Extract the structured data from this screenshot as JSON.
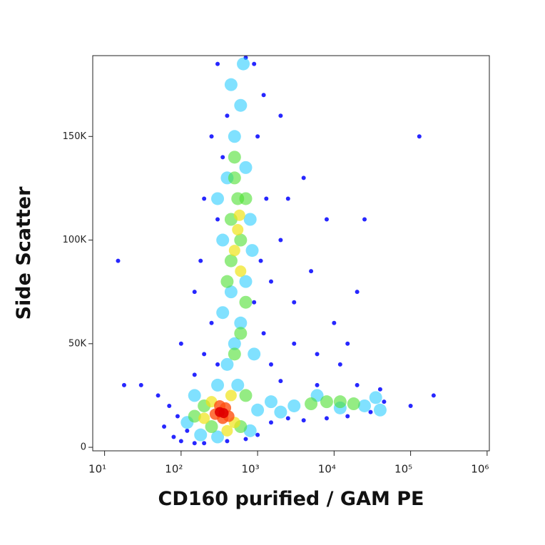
{
  "chart_data": {
    "type": "scatter",
    "x_label": "CD160 purified / GAM PE",
    "y_label": "Side Scatter",
    "xscale": "log",
    "xlim": [
      7,
      1070000
    ],
    "ylim": [
      -1700,
      189000
    ],
    "xticks": [
      {
        "value": 10,
        "label": "10¹"
      },
      {
        "value": 100,
        "label": "10²"
      },
      {
        "value": 1000,
        "label": "10³"
      },
      {
        "value": 10000,
        "label": "10⁴"
      },
      {
        "value": 100000,
        "label": "10⁵"
      },
      {
        "value": 1000000,
        "label": "10⁶"
      }
    ],
    "yticks": [
      0,
      {
        "value": 50000,
        "label": "50K"
      },
      {
        "value": 100000,
        "label": "100K"
      },
      {
        "value": 150000,
        "label": "150K"
      }
    ],
    "series": [
      {
        "color": "#1010ff",
        "x": [
          60,
          80,
          100,
          120,
          150,
          90,
          70,
          200,
          400,
          700,
          1000,
          1500,
          2500,
          4000,
          8000,
          15000,
          30000,
          45000,
          40000,
          20000,
          6000,
          2000,
          1500,
          1200,
          900,
          1500,
          2000,
          1300,
          1000,
          1200,
          900,
          300,
          250,
          200,
          180,
          150,
          250,
          200,
          150,
          100,
          3000,
          5000,
          8000,
          4000,
          20000,
          15000,
          25000,
          700,
          400,
          50,
          30,
          15,
          18,
          300,
          1100,
          2000,
          6000,
          10000,
          12000,
          3000,
          300,
          350,
          2500,
          100000,
          200000,
          130000
        ],
        "y": [
          10000,
          5000,
          3000,
          8000,
          2000,
          15000,
          20000,
          2000,
          3000,
          4000,
          6000,
          12000,
          14000,
          13000,
          14000,
          15000,
          17000,
          22000,
          28000,
          30000,
          30000,
          32000,
          40000,
          55000,
          70000,
          80000,
          100000,
          120000,
          150000,
          170000,
          185000,
          185000,
          150000,
          120000,
          90000,
          75000,
          60000,
          45000,
          35000,
          50000,
          70000,
          85000,
          110000,
          130000,
          75000,
          50000,
          110000,
          188000,
          160000,
          25000,
          30000,
          90000,
          30000,
          40000,
          90000,
          160000,
          45000,
          60000,
          40000,
          50000,
          110000,
          140000,
          120000,
          20000,
          25000,
          150000
        ]
      },
      {
        "color": "#18c8ff",
        "x": [
          400,
          500,
          600,
          450,
          700,
          350,
          800,
          400,
          700,
          500,
          600,
          450,
          650,
          550,
          300,
          150,
          120,
          180,
          800,
          1000,
          1500,
          3000,
          6000,
          12000,
          25000,
          35000,
          40000,
          2000,
          300,
          900,
          350,
          850,
          300
        ],
        "y": [
          40000,
          50000,
          60000,
          75000,
          80000,
          100000,
          110000,
          130000,
          135000,
          150000,
          165000,
          175000,
          185000,
          30000,
          30000,
          25000,
          12000,
          6000,
          8000,
          18000,
          22000,
          20000,
          25000,
          19000,
          20000,
          24000,
          18000,
          17000,
          5000,
          45000,
          65000,
          95000,
          120000
        ]
      },
      {
        "color": "#4ce030",
        "x": [
          450,
          550,
          500,
          600,
          450,
          700,
          600,
          500,
          200,
          250,
          600,
          700,
          8000,
          12000,
          18000,
          5000,
          150,
          500,
          400,
          700
        ],
        "y": [
          90000,
          120000,
          130000,
          100000,
          110000,
          70000,
          55000,
          45000,
          20000,
          10000,
          10000,
          25000,
          22000,
          22000,
          21000,
          21000,
          15000,
          140000,
          80000,
          120000
        ]
      },
      {
        "color": "#f0e418",
        "x": [
          550,
          500,
          600,
          580,
          250,
          450,
          500,
          200,
          400
        ],
        "y": [
          105000,
          95000,
          85000,
          112000,
          22000,
          25000,
          12000,
          14000,
          8000
        ]
      },
      {
        "color": "#ff5010",
        "x": [
          280,
          350,
          380,
          320,
          420
        ],
        "y": [
          16000,
          14000,
          19000,
          20000,
          15000
        ]
      },
      {
        "color": "#e00000",
        "x": [
          320,
          360
        ],
        "y": [
          17000,
          16500
        ]
      }
    ]
  }
}
